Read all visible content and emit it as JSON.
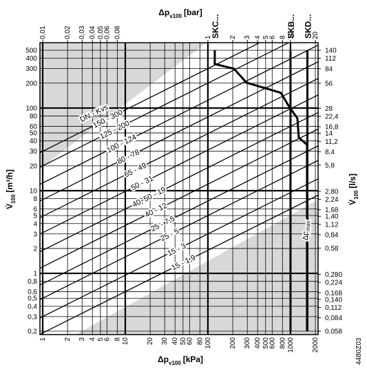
{
  "chart_data": {
    "type": "line",
    "x_label": {
      "main": "Δp",
      "sub": "v100",
      "unit": "[kPa]"
    },
    "x2_label": {
      "main": "Δp",
      "sub": "v100",
      "unit": "[bar]"
    },
    "y_label": {
      "main": "V̇",
      "sub": "100",
      "unit": "[m³/h]"
    },
    "y2_label": {
      "main": "V̇",
      "sub": "100",
      "unit": "[l/s]"
    },
    "xscale": "log",
    "yscale": "log",
    "xlim": [
      1,
      2000
    ],
    "ylim": [
      0.2,
      500
    ],
    "x2lim": [
      0.01,
      20
    ],
    "y2lim": [
      0.058,
      140
    ],
    "xticks": [
      1,
      2,
      3,
      4,
      5,
      6,
      8,
      10,
      20,
      30,
      40,
      50,
      60,
      80,
      100,
      200,
      300,
      400,
      500,
      600,
      800,
      1000,
      2000
    ],
    "x2ticks": [
      {
        "value": 0.01,
        "label": "0,01"
      },
      {
        "value": 0.02,
        "label": "0,02"
      },
      {
        "value": 0.03,
        "label": "0,03"
      },
      {
        "value": 0.04,
        "label": "0,04"
      },
      {
        "value": 0.05,
        "label": "0,05"
      },
      {
        "value": 0.06,
        "label": "0,06"
      },
      {
        "value": 0.08,
        "label": "0,08"
      },
      1,
      2,
      3,
      4,
      5,
      6,
      8,
      10,
      20
    ],
    "yticks": [
      500,
      400,
      300,
      200,
      100,
      80,
      60,
      50,
      40,
      30,
      20,
      10,
      8,
      6,
      5,
      4,
      3,
      2,
      1,
      {
        "value": 0.8,
        "label": "0,8"
      },
      {
        "value": 0.6,
        "label": "0,6"
      },
      {
        "value": 0.5,
        "label": "0,5"
      },
      {
        "value": 0.4,
        "label": "0,4"
      },
      {
        "value": 0.3,
        "label": "0,3"
      },
      {
        "value": 0.2,
        "label": "0,2"
      }
    ],
    "y2ticks": [
      140,
      112,
      84,
      56,
      28,
      {
        "value": 22.4,
        "label": "22,4"
      },
      {
        "value": 16.8,
        "label": "16,8"
      },
      14,
      {
        "value": 11.2,
        "label": "11,2"
      },
      {
        "value": 8.4,
        "label": "8,4"
      },
      {
        "value": 5.8,
        "label": "5,8"
      },
      {
        "value": 2.8,
        "label": "2,80"
      },
      {
        "value": 2.24,
        "label": "2,24"
      },
      {
        "value": 1.68,
        "label": "1,68"
      },
      {
        "value": 1.4,
        "label": "1,40"
      },
      {
        "value": 1.12,
        "label": "1,12"
      },
      {
        "value": 0.84,
        "label": "0,84"
      },
      {
        "value": 0.58,
        "label": "0,58"
      },
      {
        "value": 0.28,
        "label": "0,280"
      },
      {
        "value": 0.224,
        "label": "0,224"
      },
      {
        "value": 0.168,
        "label": "0,168"
      },
      {
        "value": 0.14,
        "label": "0,140"
      },
      {
        "value": 0.112,
        "label": "0,112"
      },
      {
        "value": 0.084,
        "label": "0,084"
      },
      {
        "value": 0.058,
        "label": "0,058"
      }
    ],
    "grid": true,
    "kvs_header": "DN - Kvs",
    "kvs_lines": [
      {
        "name": "150 - 300",
        "kvs": 300
      },
      {
        "name": "125 - 200",
        "kvs": 200
      },
      {
        "name": "100 - 124",
        "kvs": 124
      },
      {
        "name": "80 - 78",
        "kvs": 78
      },
      {
        "name": "65 - 49",
        "kvs": 49
      },
      {
        "name": "50 - 31",
        "kvs": 31
      },
      {
        "name": "40, 50 - 19",
        "kvs": 19
      },
      {
        "name": "40 - 12",
        "kvs": 12
      },
      {
        "name": "25 - 7,5",
        "kvs": 7.5
      },
      {
        "name": "25 - 5",
        "kvs": 5
      },
      {
        "name": "15 - 3",
        "kvs": 3
      },
      {
        "name": "15 - 1,9",
        "kvs": 1.9
      }
    ],
    "series": [
      {
        "name": "SKC...",
        "color": "#000000",
        "x": [
          121,
          121,
          207,
          293,
          764,
          962,
          1211,
          1259,
          1585,
          1585
        ],
        "values": [
          500,
          341,
          299,
          203,
          153,
          104,
          75,
          44,
          36,
          0.2
        ]
      },
      {
        "name": "SKB...",
        "color": "#000000",
        "x": [
          1000,
          1000
        ],
        "values": [
          500,
          0.2
        ]
      },
      {
        "name": "SKD...",
        "color": "#000000",
        "x": [
          1600,
          1600
        ],
        "values": [
          500,
          0.2
        ]
      }
    ],
    "annotation": {
      "main": "Δp",
      "sub": "max"
    },
    "figure_id": "4480Z03"
  }
}
